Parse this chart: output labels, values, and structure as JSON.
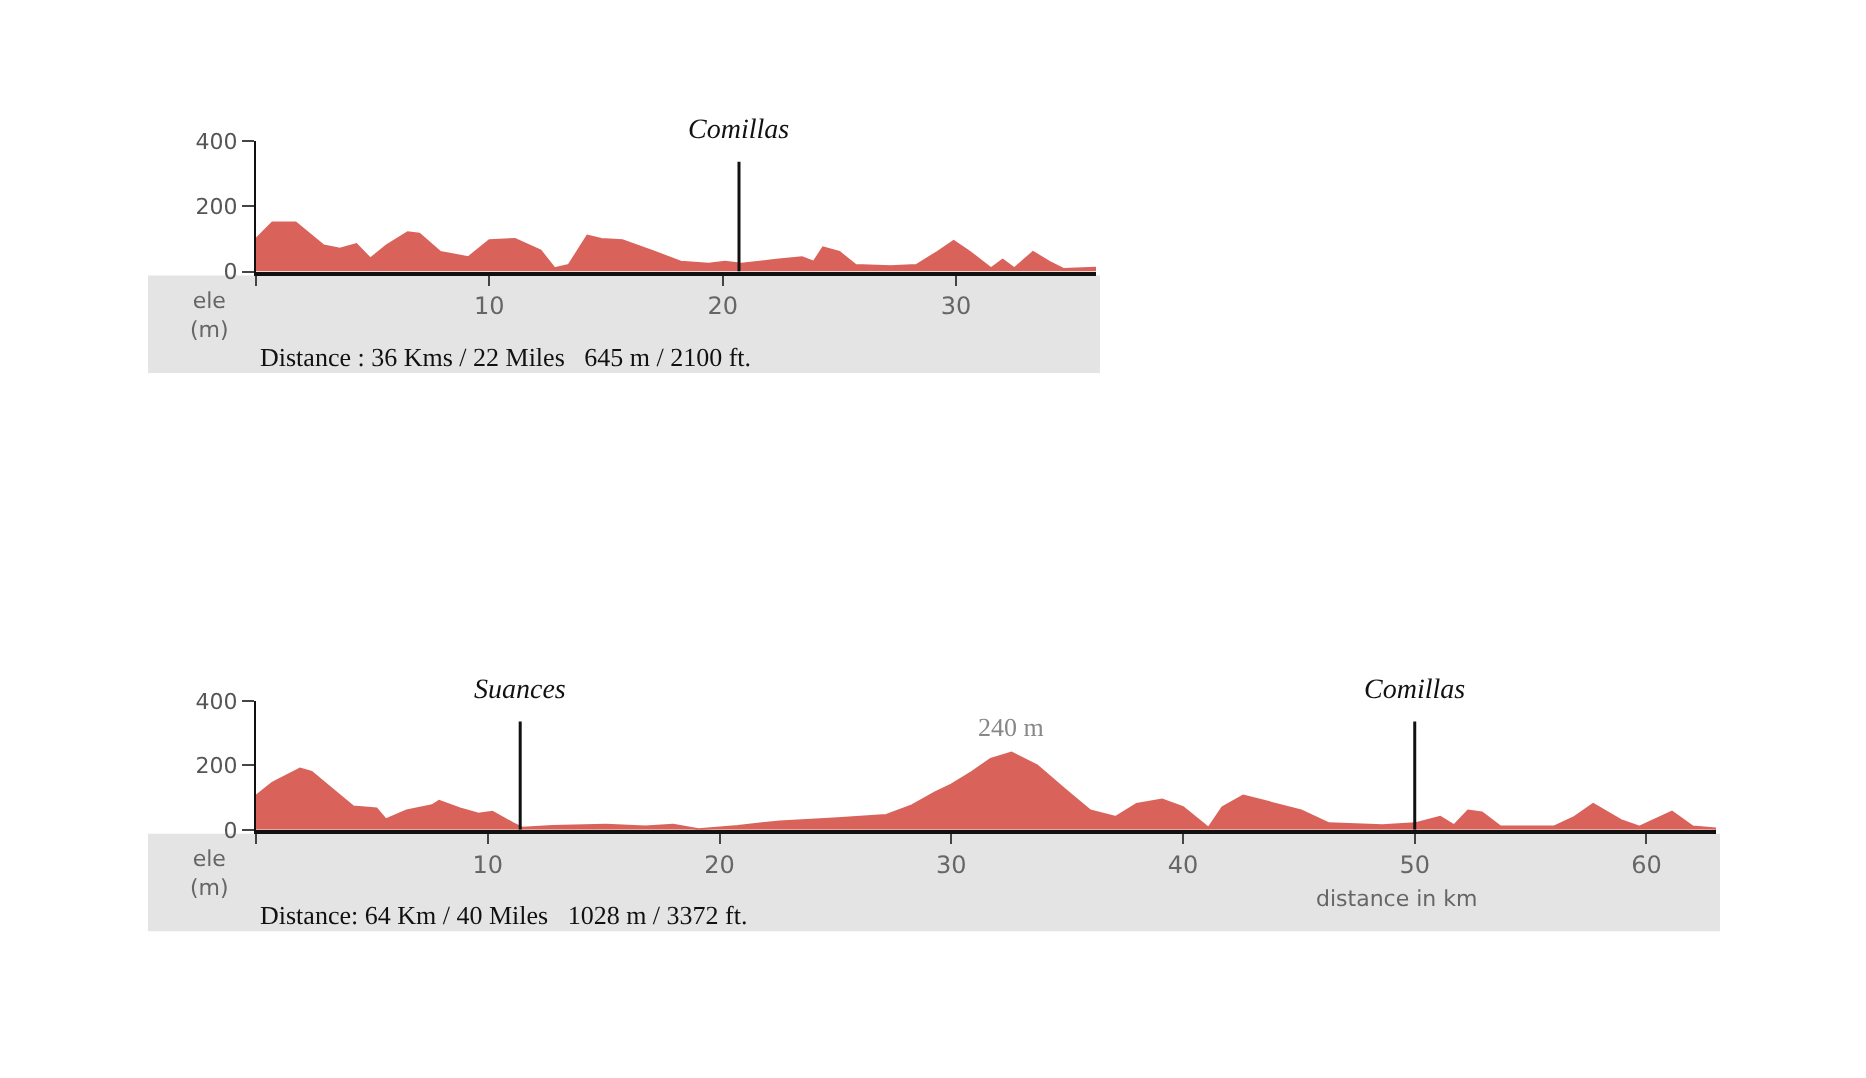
{
  "chart_data": [
    {
      "type": "area",
      "ylabel": "ele (m)",
      "xlim": [
        0,
        36
      ],
      "xticks": [
        {
          "value": 0,
          "label": null
        },
        10,
        20,
        30
      ],
      "ylim": [
        0,
        400
      ],
      "yticks": [
        0,
        200,
        400
      ],
      "marker": "none",
      "x": [
        0,
        0.7,
        1.7,
        2.9,
        3.6,
        4.3,
        4.9,
        5.6,
        6.5,
        7.0,
        7.9,
        9.1,
        10.0,
        11.1,
        12.2,
        12.8,
        13.4,
        14.2,
        14.8,
        15.7,
        17.1,
        18.2,
        19.4,
        20.1,
        20.8,
        22.3,
        23.4,
        23.9,
        24.3,
        25.0,
        25.7,
        27.2,
        28.3,
        29.2,
        29.9,
        30.6,
        31.5,
        32.0,
        32.5,
        33.3,
        34.0,
        34.6,
        36
      ],
      "series": [
        {
          "color": "#d9635a",
          "values": [
            100,
            150,
            150,
            80,
            70,
            84,
            40,
            80,
            120,
            116,
            60,
            44,
            96,
            100,
            64,
            10,
            20,
            110,
            100,
            96,
            60,
            30,
            24,
            30,
            24,
            36,
            44,
            30,
            74,
            60,
            20,
            16,
            20,
            60,
            94,
            60,
            10,
            36,
            10,
            60,
            30,
            8,
            12
          ]
        }
      ],
      "ref_lines": [
        {
          "axis": "x",
          "value": 20.7,
          "label": "Comillas"
        }
      ],
      "annotations": [
        "Distance : 36 Kms / 22 Miles   645 m / 2100 ft."
      ]
    },
    {
      "type": "area",
      "ylabel": "ele (m)",
      "xlabel": "distance in km",
      "xlim": [
        0,
        63
      ],
      "xticks": [
        {
          "value": 0,
          "label": null
        },
        10,
        20,
        30,
        40,
        50,
        60
      ],
      "ylim": [
        0,
        400
      ],
      "yticks": [
        0,
        200,
        400
      ],
      "marker": "none",
      "x": [
        0,
        0.7,
        1.9,
        2.4,
        3.3,
        4.2,
        5.2,
        5.6,
        6.5,
        7.6,
        7.9,
        8.8,
        9.6,
        10.2,
        11.1,
        11.5,
        12.8,
        15.1,
        16.8,
        18.0,
        19.1,
        20.8,
        22.6,
        25.1,
        27.2,
        28.3,
        29.3,
        30,
        30.9,
        31.7,
        32.6,
        33.7,
        34.9,
        36.0,
        37.1,
        38.0,
        39.1,
        40.0,
        41.1,
        41.7,
        42.6,
        43.7,
        45.1,
        46.3,
        48.6,
        50,
        51.1,
        51.7,
        52.3,
        52.9,
        53.7,
        56,
        56.9,
        57.7,
        58.9,
        59.7,
        60,
        61.1,
        62.0,
        63
      ],
      "series": [
        {
          "color": "#d9635a",
          "values": [
            106,
            146,
            190,
            180,
            126,
            72,
            66,
            32,
            60,
            76,
            90,
            66,
            50,
            56,
            20,
            6,
            12,
            16,
            10,
            16,
            2,
            12,
            26,
            36,
            46,
            76,
            116,
            140,
            180,
            220,
            240,
            200,
            126,
            60,
            40,
            80,
            94,
            70,
            6,
            70,
            106,
            86,
            60,
            20,
            14,
            20,
            40,
            14,
            60,
            54,
            10,
            10,
            40,
            80,
            30,
            10,
            20,
            56,
            10,
            4
          ]
        }
      ],
      "ref_lines": [
        {
          "axis": "x",
          "value": 11.4,
          "label": "Suances"
        },
        {
          "axis": "x",
          "value": 50,
          "label": "Comillas"
        }
      ],
      "annotations": [
        {
          "text": "240 m",
          "x": 32.6,
          "y": 240
        },
        "Distance: 64 Km / 40 Miles   1028 m / 3372 ft."
      ]
    }
  ]
}
